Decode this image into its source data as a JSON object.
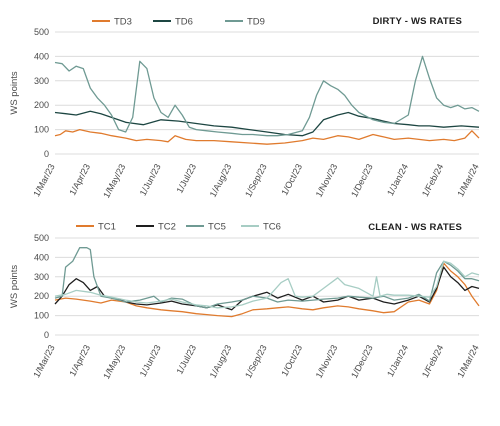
{
  "chart_data": [
    {
      "type": "line",
      "title": "DIRTY - WS RATES",
      "ylabel": "WS points",
      "ylim": [
        0,
        500
      ],
      "yticks": [
        "0",
        "100",
        "200",
        "300",
        "400",
        "500"
      ],
      "categories": [
        "1/Mar/23",
        "1/Apr/23",
        "1/May/23",
        "1/Jun/23",
        "1/Jul/23",
        "1/Aug/23",
        "1/Sep/23",
        "1/Oct/23",
        "1/Nov/23",
        "1/Dec/23",
        "1/Jan/24",
        "1/Feb/24",
        "1/Mar/24"
      ],
      "grid": "horizontal",
      "legend": "top-left",
      "series": [
        {
          "name": "TD3",
          "color": "#e07b2e",
          "x": [
            0,
            0.15,
            0.3,
            0.5,
            0.7,
            1.0,
            1.3,
            1.6,
            2.0,
            2.3,
            2.6,
            3.0,
            3.2,
            3.4,
            3.7,
            4.0,
            4.5,
            5.0,
            5.5,
            6.0,
            6.5,
            7.0,
            7.3,
            7.6,
            8.0,
            8.3,
            8.6,
            9.0,
            9.3,
            9.6,
            10.0,
            10.3,
            10.6,
            11.0,
            11.3,
            11.6,
            11.8,
            12.0
          ],
          "values": [
            75,
            80,
            95,
            90,
            100,
            90,
            85,
            75,
            65,
            55,
            60,
            55,
            50,
            75,
            60,
            55,
            55,
            50,
            45,
            40,
            45,
            55,
            65,
            60,
            75,
            70,
            60,
            80,
            70,
            60,
            65,
            60,
            55,
            60,
            55,
            65,
            95,
            65
          ]
        },
        {
          "name": "TD6",
          "color": "#1d4642",
          "x": [
            0,
            0.3,
            0.6,
            1.0,
            1.3,
            1.6,
            2.0,
            2.5,
            3.0,
            3.5,
            4.0,
            4.5,
            5.0,
            5.5,
            6.0,
            6.5,
            7.0,
            7.3,
            7.6,
            8.0,
            8.3,
            8.6,
            9.0,
            9.3,
            9.6,
            10.0,
            10.3,
            10.6,
            11.0,
            11.5,
            12.0
          ],
          "values": [
            170,
            165,
            160,
            175,
            165,
            150,
            130,
            120,
            140,
            135,
            125,
            115,
            110,
            100,
            90,
            80,
            75,
            90,
            140,
            160,
            170,
            155,
            145,
            135,
            125,
            120,
            115,
            115,
            110,
            115,
            110
          ]
        },
        {
          "name": "TD9",
          "color": "#6f9a93",
          "x": [
            0,
            0.2,
            0.4,
            0.6,
            0.8,
            1.0,
            1.2,
            1.4,
            1.6,
            1.8,
            2.0,
            2.2,
            2.4,
            2.6,
            2.8,
            3.0,
            3.2,
            3.4,
            3.6,
            3.8,
            4.0,
            4.3,
            4.6,
            5.0,
            5.3,
            5.6,
            6.0,
            6.3,
            6.6,
            7.0,
            7.2,
            7.4,
            7.6,
            7.8,
            8.0,
            8.2,
            8.4,
            8.6,
            9.0,
            9.3,
            9.6,
            10.0,
            10.2,
            10.4,
            10.6,
            10.8,
            11.0,
            11.2,
            11.4,
            11.6,
            11.8,
            12.0
          ],
          "values": [
            375,
            370,
            340,
            360,
            350,
            270,
            230,
            200,
            160,
            100,
            90,
            150,
            380,
            350,
            230,
            170,
            150,
            200,
            160,
            110,
            100,
            95,
            90,
            85,
            80,
            80,
            75,
            75,
            80,
            95,
            150,
            240,
            300,
            280,
            265,
            240,
            200,
            170,
            140,
            130,
            125,
            160,
            300,
            400,
            310,
            230,
            200,
            190,
            200,
            185,
            190,
            175
          ]
        }
      ]
    },
    {
      "type": "line",
      "title": "CLEAN - WS RATES",
      "ylabel": "WS points",
      "ylim": [
        0,
        500
      ],
      "yticks": [
        "0",
        "100",
        "200",
        "300",
        "400",
        "500"
      ],
      "categories": [
        "1/Mar/23",
        "1/Apr/23",
        "1/May/23",
        "1/Jun/23",
        "1/Jul/23",
        "1/Aug/23",
        "1/Sep/23",
        "1/Oct/23",
        "1/Nov/23",
        "1/Dec/23",
        "1/Jan/24",
        "1/Feb/24",
        "1/Mar/24"
      ],
      "grid": "horizontal",
      "legend": "top-left",
      "series": [
        {
          "name": "TC1",
          "color": "#e07b2e",
          "x": [
            0,
            0.3,
            0.6,
            1.0,
            1.3,
            1.6,
            2.0,
            2.3,
            2.6,
            3.0,
            3.3,
            3.6,
            4.0,
            4.3,
            4.6,
            5.0,
            5.3,
            5.6,
            6.0,
            6.3,
            6.6,
            7.0,
            7.3,
            7.6,
            8.0,
            8.3,
            8.6,
            9.0,
            9.3,
            9.6,
            10.0,
            10.3,
            10.6,
            10.8,
            11.0,
            11.2,
            11.4,
            11.6,
            11.8,
            12.0
          ],
          "values": [
            180,
            190,
            185,
            175,
            165,
            180,
            170,
            150,
            140,
            130,
            125,
            120,
            110,
            105,
            100,
            95,
            110,
            130,
            135,
            140,
            145,
            135,
            130,
            140,
            150,
            145,
            135,
            125,
            115,
            120,
            170,
            180,
            160,
            230,
            370,
            330,
            300,
            260,
            200,
            150
          ]
        },
        {
          "name": "TC2",
          "color": "#1e1e1e",
          "x": [
            0,
            0.2,
            0.4,
            0.6,
            0.8,
            1.0,
            1.2,
            1.4,
            1.6,
            1.8,
            2.0,
            2.3,
            2.6,
            3.0,
            3.3,
            3.6,
            4.0,
            4.3,
            4.6,
            5.0,
            5.3,
            5.6,
            6.0,
            6.3,
            6.6,
            7.0,
            7.3,
            7.6,
            8.0,
            8.3,
            8.6,
            9.0,
            9.3,
            9.6,
            10.0,
            10.3,
            10.6,
            10.8,
            11.0,
            11.2,
            11.4,
            11.6,
            11.8,
            12.0
          ],
          "values": [
            160,
            200,
            260,
            290,
            270,
            230,
            250,
            200,
            190,
            185,
            170,
            160,
            155,
            165,
            175,
            160,
            150,
            140,
            155,
            130,
            180,
            200,
            220,
            190,
            210,
            180,
            200,
            170,
            180,
            200,
            180,
            190,
            170,
            160,
            180,
            200,
            170,
            240,
            350,
            300,
            270,
            230,
            250,
            240
          ]
        },
        {
          "name": "TC5",
          "color": "#6f9a93",
          "x": [
            0,
            0.2,
            0.3,
            0.5,
            0.7,
            0.9,
            1.0,
            1.1,
            1.3,
            1.6,
            2.0,
            2.4,
            2.8,
            3.0,
            3.3,
            3.6,
            4.0,
            4.3,
            4.6,
            5.0,
            5.3,
            5.6,
            6.0,
            6.3,
            6.6,
            7.0,
            7.3,
            7.6,
            8.0,
            8.3,
            8.6,
            9.0,
            9.3,
            9.6,
            10.0,
            10.3,
            10.6,
            10.8,
            11.0,
            11.2,
            11.4,
            11.6,
            11.8,
            12.0
          ],
          "values": [
            190,
            200,
            350,
            380,
            450,
            450,
            440,
            300,
            200,
            190,
            170,
            180,
            200,
            170,
            190,
            185,
            150,
            140,
            160,
            170,
            180,
            200,
            190,
            170,
            180,
            175,
            180,
            185,
            190,
            200,
            195,
            190,
            200,
            180,
            190,
            210,
            175,
            320,
            380,
            360,
            330,
            290,
            290,
            280
          ]
        },
        {
          "name": "TC6",
          "color": "#a7cdc4",
          "x": [
            0,
            0.3,
            0.6,
            1.0,
            1.3,
            1.6,
            2.0,
            2.3,
            2.6,
            3.0,
            3.3,
            3.6,
            4.0,
            4.3,
            4.6,
            5.0,
            5.3,
            5.6,
            6.0,
            6.2,
            6.4,
            6.6,
            6.8,
            7.0,
            7.3,
            7.6,
            8.0,
            8.2,
            8.4,
            8.6,
            9.0,
            9.1,
            9.2,
            9.4,
            9.6,
            10.0,
            10.3,
            10.6,
            10.8,
            11.0,
            11.2,
            11.4,
            11.6,
            11.8,
            12.0
          ],
          "values": [
            200,
            210,
            230,
            220,
            205,
            195,
            180,
            170,
            165,
            175,
            185,
            170,
            155,
            150,
            140,
            145,
            155,
            175,
            190,
            230,
            270,
            290,
            200,
            195,
            200,
            240,
            295,
            260,
            250,
            240,
            200,
            300,
            200,
            210,
            205,
            205,
            200,
            195,
            250,
            380,
            370,
            340,
            300,
            320,
            310
          ]
        }
      ]
    }
  ]
}
